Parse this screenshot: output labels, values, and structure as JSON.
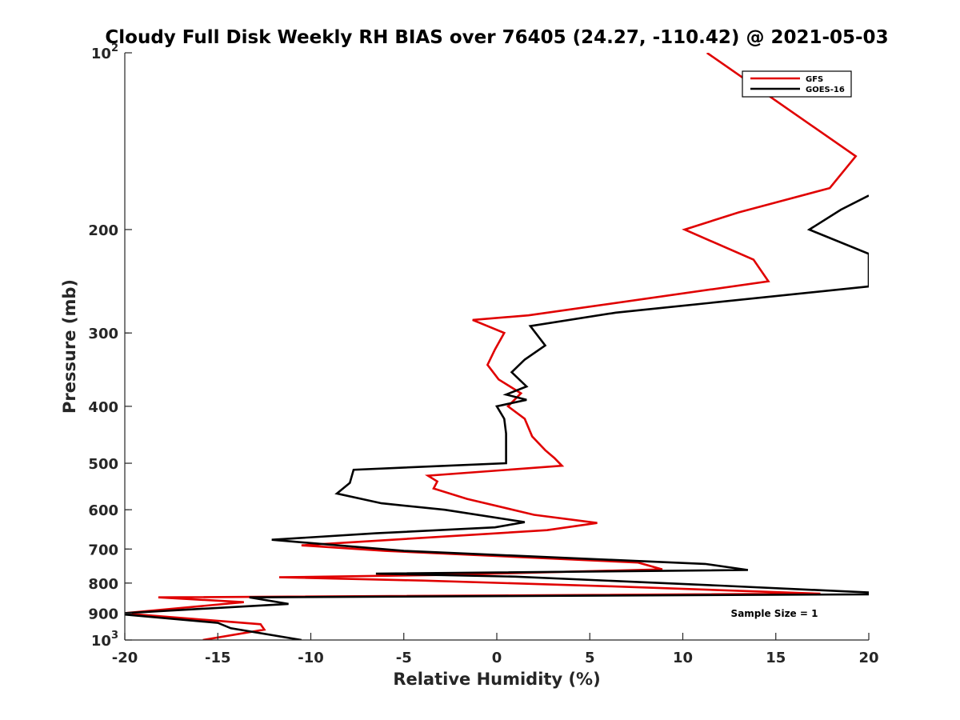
{
  "chart_data": {
    "type": "line",
    "title": "Cloudy Full Disk Weekly RH BIAS over 76405 (24.27, -110.42) @ 2021-05-03",
    "xlabel": "Relative Humidity (%)",
    "ylabel": "Pressure (mb)",
    "xlim": [
      -20,
      20
    ],
    "ylim": [
      100,
      1000
    ],
    "yscale": "log",
    "y_reversed": true,
    "grid": false,
    "legend_position": "top-right",
    "x_ticks": [
      -20,
      -15,
      -10,
      -5,
      0,
      5,
      10,
      15,
      20
    ],
    "x_tick_labels": [
      "-20",
      "-15",
      "-10",
      "-5",
      "0",
      "5",
      "10",
      "15",
      "20"
    ],
    "y_ticks": [
      100,
      200,
      300,
      400,
      500,
      600,
      700,
      800,
      900,
      1000
    ],
    "y_tick_labels": [
      {
        "base": "10",
        "exp": "2"
      },
      {
        "base": "200",
        "exp": ""
      },
      {
        "base": "300",
        "exp": ""
      },
      {
        "base": "400",
        "exp": ""
      },
      {
        "base": "500",
        "exp": ""
      },
      {
        "base": "600",
        "exp": ""
      },
      {
        "base": "700",
        "exp": ""
      },
      {
        "base": "800",
        "exp": ""
      },
      {
        "base": "900",
        "exp": ""
      },
      {
        "base": "10",
        "exp": "3"
      }
    ],
    "annotation": "Sample Size = 1",
    "series": [
      {
        "name": "GFS",
        "color": "#e00000",
        "points": [
          [
            11.3,
            100
          ],
          [
            19.3,
            150
          ],
          [
            17.9,
            170
          ],
          [
            13.0,
            187
          ],
          [
            10.1,
            200
          ],
          [
            13.8,
            225
          ],
          [
            14.6,
            245
          ],
          [
            1.7,
            280
          ],
          [
            -1.3,
            285
          ],
          [
            0.4,
            300
          ],
          [
            -0.1,
            320
          ],
          [
            -0.5,
            340
          ],
          [
            0.1,
            360
          ],
          [
            1.3,
            380
          ],
          [
            0.6,
            400
          ],
          [
            1.5,
            420
          ],
          [
            1.9,
            450
          ],
          [
            2.6,
            475
          ],
          [
            3.1,
            490
          ],
          [
            3.5,
            505
          ],
          [
            -3.7,
            525
          ],
          [
            -3.2,
            537
          ],
          [
            -3.4,
            552
          ],
          [
            -1.6,
            575
          ],
          [
            2.0,
            612
          ],
          [
            5.4,
            632
          ],
          [
            2.7,
            650
          ],
          [
            -10.5,
            690
          ],
          [
            -6.0,
            705
          ],
          [
            7.6,
            738
          ],
          [
            8.9,
            758
          ],
          [
            -3.0,
            775
          ],
          [
            -11.7,
            782
          ],
          [
            -4.0,
            792
          ],
          [
            6.0,
            810
          ],
          [
            17.4,
            834
          ],
          [
            -18.2,
            846
          ],
          [
            -13.6,
            862
          ],
          [
            -20.0,
            900
          ],
          [
            -19.6,
            903
          ],
          [
            -12.7,
            940
          ],
          [
            -12.5,
            960
          ],
          [
            -15.8,
            1000
          ]
        ]
      },
      {
        "name": "GOES-16",
        "color": "#000000",
        "points": [
          [
            20.0,
            175
          ],
          [
            18.5,
            185
          ],
          [
            16.8,
            200
          ],
          [
            20.0,
            220
          ],
          [
            20.0,
            250
          ],
          [
            6.4,
            277
          ],
          [
            1.8,
            292
          ],
          [
            2.6,
            315
          ],
          [
            1.5,
            333
          ],
          [
            0.8,
            350
          ],
          [
            1.6,
            370
          ],
          [
            0.5,
            382
          ],
          [
            1.6,
            390
          ],
          [
            0.0,
            400
          ],
          [
            0.4,
            420
          ],
          [
            0.5,
            445
          ],
          [
            0.5,
            470
          ],
          [
            0.5,
            500
          ],
          [
            -7.7,
            513
          ],
          [
            -7.9,
            540
          ],
          [
            -8.6,
            563
          ],
          [
            -6.2,
            585
          ],
          [
            -2.8,
            600
          ],
          [
            1.5,
            630
          ],
          [
            -0.1,
            643
          ],
          [
            -6.5,
            658
          ],
          [
            -12.1,
            675
          ],
          [
            -5.0,
            705
          ],
          [
            11.2,
            742
          ],
          [
            13.5,
            760
          ],
          [
            -6.5,
            771
          ],
          [
            1.0,
            780
          ],
          [
            12.0,
            808
          ],
          [
            20.0,
            830
          ],
          [
            20.0,
            836
          ],
          [
            -13.3,
            846
          ],
          [
            -11.2,
            868
          ],
          [
            -20.0,
            900
          ],
          [
            -20.0,
            905
          ],
          [
            -15.0,
            935
          ],
          [
            -14.3,
            955
          ],
          [
            -10.5,
            1000
          ]
        ]
      }
    ]
  }
}
